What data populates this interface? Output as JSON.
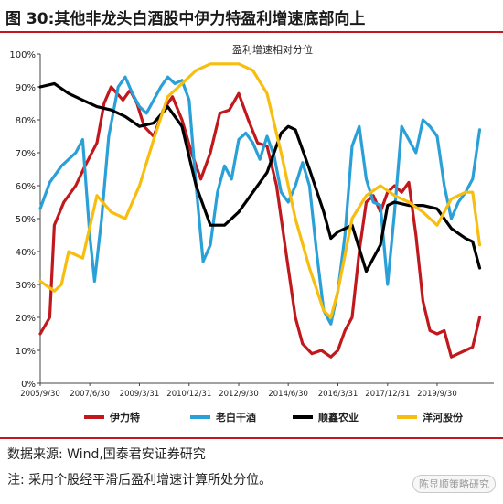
{
  "figure": {
    "title": "图 30:其他非龙头白酒股中伊力特盈利增速底部向上",
    "source": "数据来源: Wind,国泰君安证券研究",
    "note": "注: 采用个股经平滑后盈利增速计算所处分位。",
    "watermark": "陈显顺策略研究"
  },
  "colors": {
    "rule": "#c0181d",
    "yili": "#c0181d",
    "laobai": "#2aa0d8",
    "shunxin": "#000000",
    "yanghe": "#f7be0f"
  },
  "chart_data": {
    "type": "line",
    "title": "盈利增速相对分位",
    "ylim": [
      0,
      100
    ],
    "yticks": [
      "0%",
      "10%",
      "20%",
      "30%",
      "40%",
      "50%",
      "60%",
      "70%",
      "80%",
      "90%",
      "100%"
    ],
    "xlim": [
      "2005-09-30",
      "2021-09-30"
    ],
    "x_ticks": [
      {
        "date": "2005-09-30",
        "label": "2005/9/30"
      },
      {
        "date": "2007-06-30",
        "label": "2007/6/30"
      },
      {
        "date": "2009-03-31",
        "label": "2009/3/31"
      },
      {
        "date": "2010-12-31",
        "label": "2010/12/31"
      },
      {
        "date": "2012-09-30",
        "label": "2012/9/30"
      },
      {
        "date": "2014-06-30",
        "label": "2014/6/30"
      },
      {
        "date": "2016-03-31",
        "label": "2016/3/31"
      },
      {
        "date": "2017-12-31",
        "label": "2017/12/31"
      },
      {
        "date": "2019-09-30",
        "label": "2019/9/30"
      }
    ],
    "series": [
      {
        "name": "伊力特",
        "color": "#c0181d",
        "points": [
          [
            "2005-09-30",
            15
          ],
          [
            "2006-01-31",
            20
          ],
          [
            "2006-03-31",
            48
          ],
          [
            "2006-07-31",
            55
          ],
          [
            "2006-12-31",
            60
          ],
          [
            "2007-04-30",
            66
          ],
          [
            "2007-09-30",
            73
          ],
          [
            "2007-12-31",
            85
          ],
          [
            "2008-03-31",
            90
          ],
          [
            "2008-08-31",
            86
          ],
          [
            "2008-11-30",
            89
          ],
          [
            "2009-02-28",
            85
          ],
          [
            "2009-05-31",
            78
          ],
          [
            "2009-09-30",
            75
          ],
          [
            "2010-01-31",
            83
          ],
          [
            "2010-05-31",
            87
          ],
          [
            "2010-09-30",
            80
          ],
          [
            "2011-01-31",
            70
          ],
          [
            "2011-05-31",
            62
          ],
          [
            "2011-09-30",
            70
          ],
          [
            "2012-01-31",
            82
          ],
          [
            "2012-05-31",
            83
          ],
          [
            "2012-09-30",
            88
          ],
          [
            "2013-01-31",
            80
          ],
          [
            "2013-05-31",
            73
          ],
          [
            "2013-09-30",
            72
          ],
          [
            "2014-01-31",
            60
          ],
          [
            "2014-05-31",
            40
          ],
          [
            "2014-09-30",
            20
          ],
          [
            "2014-12-31",
            12
          ],
          [
            "2015-04-30",
            9
          ],
          [
            "2015-08-31",
            10
          ],
          [
            "2015-12-31",
            8
          ],
          [
            "2016-03-31",
            10
          ],
          [
            "2016-06-30",
            16
          ],
          [
            "2016-09-30",
            20
          ],
          [
            "2016-12-31",
            40
          ],
          [
            "2017-03-31",
            55
          ],
          [
            "2017-06-30",
            57
          ],
          [
            "2017-09-30",
            52
          ],
          [
            "2017-12-31",
            58
          ],
          [
            "2018-03-31",
            60
          ],
          [
            "2018-06-30",
            58
          ],
          [
            "2018-09-30",
            61
          ],
          [
            "2018-12-31",
            45
          ],
          [
            "2019-03-31",
            25
          ],
          [
            "2019-06-30",
            16
          ],
          [
            "2019-09-30",
            15
          ],
          [
            "2019-12-31",
            16
          ],
          [
            "2020-03-31",
            8
          ],
          [
            "2020-06-30",
            9
          ],
          [
            "2020-09-30",
            10
          ],
          [
            "2020-12-31",
            11
          ],
          [
            "2021-03-31",
            20
          ]
        ]
      },
      {
        "name": "老白干酒",
        "color": "#2aa0d8",
        "points": [
          [
            "2005-09-30",
            53
          ],
          [
            "2006-01-31",
            61
          ],
          [
            "2006-06-30",
            66
          ],
          [
            "2006-12-31",
            70
          ],
          [
            "2007-03-31",
            74
          ],
          [
            "2007-06-30",
            45
          ],
          [
            "2007-08-31",
            31
          ],
          [
            "2007-11-30",
            50
          ],
          [
            "2008-02-29",
            75
          ],
          [
            "2008-06-30",
            90
          ],
          [
            "2008-09-30",
            93
          ],
          [
            "2008-12-31",
            88
          ],
          [
            "2009-03-31",
            84
          ],
          [
            "2009-06-30",
            82
          ],
          [
            "2009-09-30",
            86
          ],
          [
            "2009-12-31",
            90
          ],
          [
            "2010-03-31",
            93
          ],
          [
            "2010-06-30",
            91
          ],
          [
            "2010-09-30",
            92
          ],
          [
            "2010-12-31",
            86
          ],
          [
            "2011-03-31",
            60
          ],
          [
            "2011-06-30",
            37
          ],
          [
            "2011-09-30",
            42
          ],
          [
            "2011-12-31",
            58
          ],
          [
            "2012-03-31",
            66
          ],
          [
            "2012-06-30",
            62
          ],
          [
            "2012-09-30",
            74
          ],
          [
            "2012-12-31",
            76
          ],
          [
            "2013-03-31",
            73
          ],
          [
            "2013-06-30",
            68
          ],
          [
            "2013-09-30",
            75
          ],
          [
            "2013-12-31",
            69
          ],
          [
            "2014-03-31",
            58
          ],
          [
            "2014-06-30",
            55
          ],
          [
            "2014-09-30",
            60
          ],
          [
            "2014-12-31",
            67
          ],
          [
            "2015-03-31",
            60
          ],
          [
            "2015-06-30",
            40
          ],
          [
            "2015-09-30",
            22
          ],
          [
            "2015-12-31",
            18
          ],
          [
            "2016-03-31",
            28
          ],
          [
            "2016-06-30",
            45
          ],
          [
            "2016-09-30",
            72
          ],
          [
            "2016-12-31",
            78
          ],
          [
            "2017-03-31",
            62
          ],
          [
            "2017-06-30",
            55
          ],
          [
            "2017-09-30",
            54
          ],
          [
            "2017-12-31",
            30
          ],
          [
            "2018-03-31",
            52
          ],
          [
            "2018-06-30",
            78
          ],
          [
            "2018-09-30",
            74
          ],
          [
            "2018-12-31",
            70
          ],
          [
            "2019-03-31",
            80
          ],
          [
            "2019-06-30",
            78
          ],
          [
            "2019-09-30",
            75
          ],
          [
            "2019-12-31",
            60
          ],
          [
            "2020-03-31",
            50
          ],
          [
            "2020-06-30",
            55
          ],
          [
            "2020-09-30",
            58
          ],
          [
            "2020-12-31",
            62
          ],
          [
            "2021-03-31",
            77
          ]
        ]
      },
      {
        "name": "顺鑫农业",
        "color": "#000000",
        "points": [
          [
            "2005-09-30",
            90
          ],
          [
            "2006-03-31",
            91
          ],
          [
            "2006-09-30",
            88
          ],
          [
            "2007-03-31",
            86
          ],
          [
            "2007-09-30",
            84
          ],
          [
            "2008-03-31",
            83
          ],
          [
            "2008-09-30",
            81
          ],
          [
            "2009-03-31",
            78
          ],
          [
            "2009-09-30",
            79
          ],
          [
            "2010-03-31",
            84
          ],
          [
            "2010-09-30",
            78
          ],
          [
            "2011-03-31",
            60
          ],
          [
            "2011-09-30",
            48
          ],
          [
            "2012-03-31",
            48
          ],
          [
            "2012-09-30",
            52
          ],
          [
            "2013-03-31",
            58
          ],
          [
            "2013-09-30",
            64
          ],
          [
            "2014-03-31",
            76
          ],
          [
            "2014-06-30",
            78
          ],
          [
            "2014-09-30",
            77
          ],
          [
            "2015-03-31",
            65
          ],
          [
            "2015-09-30",
            52
          ],
          [
            "2015-12-31",
            44
          ],
          [
            "2016-03-31",
            46
          ],
          [
            "2016-09-30",
            48
          ],
          [
            "2017-03-31",
            34
          ],
          [
            "2017-09-30",
            42
          ],
          [
            "2017-12-31",
            54
          ],
          [
            "2018-03-31",
            55
          ],
          [
            "2018-09-30",
            54
          ],
          [
            "2019-03-31",
            54
          ],
          [
            "2019-09-30",
            53
          ],
          [
            "2020-03-31",
            47
          ],
          [
            "2020-09-30",
            44
          ],
          [
            "2020-12-31",
            43
          ],
          [
            "2021-03-31",
            35
          ]
        ]
      },
      {
        "name": "洋河股份",
        "color": "#f7be0f",
        "points": [
          [
            "2005-09-30",
            31
          ],
          [
            "2006-03-31",
            28
          ],
          [
            "2006-06-30",
            30
          ],
          [
            "2006-09-30",
            40
          ],
          [
            "2007-03-31",
            38
          ],
          [
            "2007-09-30",
            57
          ],
          [
            "2008-03-31",
            52
          ],
          [
            "2008-09-30",
            50
          ],
          [
            "2009-03-31",
            60
          ],
          [
            "2009-09-30",
            74
          ],
          [
            "2010-03-31",
            87
          ],
          [
            "2010-09-30",
            91
          ],
          [
            "2011-03-31",
            95
          ],
          [
            "2011-09-30",
            97
          ],
          [
            "2012-03-31",
            97
          ],
          [
            "2012-09-30",
            97
          ],
          [
            "2013-03-31",
            95
          ],
          [
            "2013-09-30",
            88
          ],
          [
            "2014-03-31",
            70
          ],
          [
            "2014-09-30",
            50
          ],
          [
            "2015-03-31",
            35
          ],
          [
            "2015-09-30",
            22
          ],
          [
            "2015-12-31",
            20
          ],
          [
            "2016-03-31",
            28
          ],
          [
            "2016-09-30",
            50
          ],
          [
            "2017-03-31",
            57
          ],
          [
            "2017-09-30",
            60
          ],
          [
            "2018-03-31",
            57
          ],
          [
            "2018-09-30",
            55
          ],
          [
            "2019-03-31",
            52
          ],
          [
            "2019-09-30",
            48
          ],
          [
            "2020-03-31",
            56
          ],
          [
            "2020-09-30",
            58
          ],
          [
            "2020-12-31",
            58
          ],
          [
            "2021-03-31",
            42
          ]
        ]
      }
    ]
  }
}
